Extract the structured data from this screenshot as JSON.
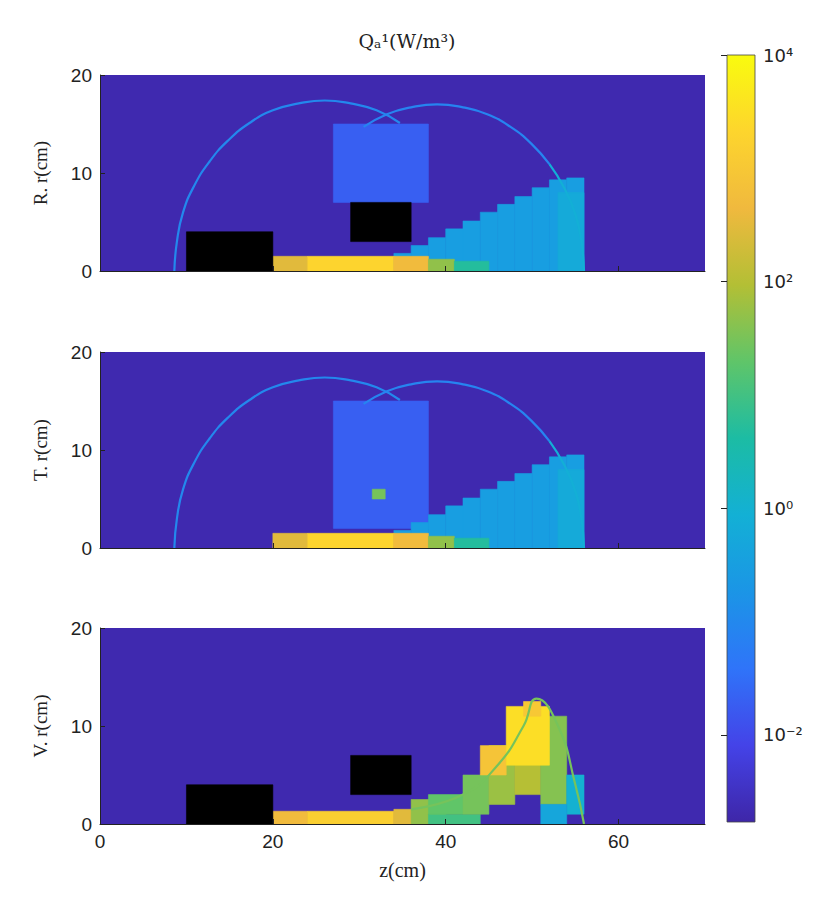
{
  "chart_data": {
    "type": "heatmap",
    "title": "Qₐ¹(W/m³)",
    "color_bar": {
      "log": true,
      "range": [
        0.0017,
        10000
      ],
      "ticks": [
        {
          "value": 0.01,
          "label": "10⁻²"
        },
        {
          "value": 1,
          "label": "10⁰"
        },
        {
          "value": 100,
          "label": "10²"
        },
        {
          "value": 10000,
          "label": "10⁴"
        }
      ]
    },
    "panels": [
      {
        "ylabel": "R. r(cm)",
        "xlim": [
          0,
          70
        ],
        "ylim": [
          0,
          20
        ],
        "xticks": [
          0,
          20,
          40,
          60
        ],
        "yticks": [
          0,
          10,
          20
        ],
        "tick_labels": "y",
        "regions": [
          [
            0,
            70,
            0,
            20,
            0.002
          ],
          [
            27,
            38,
            7,
            15,
            0.02
          ],
          [
            34,
            36,
            0,
            1.8,
            0.3
          ],
          [
            36,
            38,
            0,
            2.6,
            0.3
          ],
          [
            38,
            40,
            0,
            3.4,
            0.3
          ],
          [
            40,
            42,
            0,
            4.3,
            0.3
          ],
          [
            42,
            44,
            0,
            5.1,
            0.3
          ],
          [
            44,
            46,
            0,
            6.0,
            0.3
          ],
          [
            46,
            48,
            0,
            6.8,
            0.3
          ],
          [
            48,
            50,
            0,
            7.6,
            0.3
          ],
          [
            50,
            52,
            0,
            8.5,
            0.3
          ],
          [
            52,
            54,
            0,
            9.3,
            0.3
          ],
          [
            54,
            56,
            0,
            9.5,
            0.3
          ],
          [
            53,
            56,
            0,
            8,
            0.6
          ],
          [
            20,
            24,
            0,
            1.5,
            300
          ],
          [
            24,
            34,
            0,
            1.5,
            2000
          ],
          [
            34,
            38,
            0,
            1.5,
            500
          ],
          [
            38,
            41,
            0,
            1.2,
            50
          ],
          [
            41,
            45,
            0,
            1,
            5
          ]
        ],
        "ridges": [
          {
            "value": 0.1,
            "points": [
              [
                8.6,
                0
              ],
              [
                8.9,
                3.0
              ],
              [
                9.6,
                5.95
              ],
              [
                10.9,
                8.7
              ],
              [
                12.7,
                11.2
              ],
              [
                14.8,
                13.3
              ],
              [
                17.3,
                15.1
              ],
              [
                20.0,
                16.4
              ],
              [
                23.0,
                17.1
              ],
              [
                26,
                17.4
              ],
              [
                29.0,
                17.1
              ],
              [
                32.0,
                16.4
              ],
              [
                34.7,
                15.1
              ]
            ]
          },
          {
            "value": 0.08,
            "points": [
              [
                30.5,
                14.7
              ],
              [
                33.2,
                16.0
              ],
              [
                36.0,
                16.7
              ],
              [
                39,
                17
              ],
              [
                42.0,
                16.7
              ],
              [
                44.8,
                16.0
              ],
              [
                47.5,
                14.7
              ],
              [
                49.9,
                13.0
              ],
              [
                52.0,
                10.9
              ]
            ]
          },
          {
            "value": 0.8,
            "points": [
              [
                52.0,
                10.9
              ],
              [
                53.7,
                8.5
              ],
              [
                55.0,
                5.8
              ],
              [
                55.7,
                3.0
              ],
              [
                56,
                0
              ]
            ]
          }
        ],
        "obstacles": [
          [
            10,
            20,
            0,
            4
          ],
          [
            29,
            36,
            3,
            7
          ]
        ]
      },
      {
        "ylabel": "T. r(cm)",
        "xlim": [
          0,
          70
        ],
        "ylim": [
          0,
          20
        ],
        "xticks": [
          0,
          20,
          40,
          60
        ],
        "yticks": [
          0,
          10,
          20
        ],
        "tick_labels": "y",
        "regions": [
          [
            0,
            70,
            0,
            20,
            0.002
          ],
          [
            27,
            38,
            2,
            15,
            0.02
          ],
          [
            34,
            36,
            0,
            1.8,
            0.3
          ],
          [
            36,
            38,
            0,
            2.6,
            0.3
          ],
          [
            38,
            40,
            0,
            3.4,
            0.3
          ],
          [
            40,
            42,
            0,
            4.3,
            0.3
          ],
          [
            42,
            44,
            0,
            5.1,
            0.3
          ],
          [
            44,
            46,
            0,
            6.0,
            0.3
          ],
          [
            46,
            48,
            0,
            6.8,
            0.3
          ],
          [
            48,
            50,
            0,
            7.6,
            0.3
          ],
          [
            50,
            52,
            0,
            8.5,
            0.3
          ],
          [
            52,
            54,
            0,
            9.3,
            0.3
          ],
          [
            54,
            56,
            0,
            9.5,
            0.3
          ],
          [
            53,
            56,
            0,
            8,
            0.6
          ],
          [
            20,
            24,
            0,
            1.5,
            300
          ],
          [
            24,
            34,
            0,
            1.5,
            2000
          ],
          [
            34,
            38,
            0,
            1.5,
            500
          ],
          [
            38,
            41,
            0,
            1.2,
            50
          ],
          [
            41,
            45,
            0,
            1,
            5
          ],
          [
            31.5,
            33,
            5,
            6,
            30
          ]
        ],
        "ridges": [
          {
            "value": 0.1,
            "points": [
              [
                8.6,
                0
              ],
              [
                8.9,
                3.0
              ],
              [
                9.6,
                5.95
              ],
              [
                10.9,
                8.7
              ],
              [
                12.7,
                11.2
              ],
              [
                14.8,
                13.3
              ],
              [
                17.3,
                15.1
              ],
              [
                20.0,
                16.4
              ],
              [
                23.0,
                17.1
              ],
              [
                26,
                17.4
              ],
              [
                29.0,
                17.1
              ],
              [
                32.0,
                16.4
              ],
              [
                34.7,
                15.1
              ]
            ]
          },
          {
            "value": 0.08,
            "points": [
              [
                30.5,
                14.7
              ],
              [
                33.2,
                16.0
              ],
              [
                36.0,
                16.7
              ],
              [
                39,
                17
              ],
              [
                42.0,
                16.7
              ],
              [
                44.8,
                16.0
              ],
              [
                47.5,
                14.7
              ],
              [
                49.9,
                13.0
              ],
              [
                52.0,
                10.9
              ]
            ]
          },
          {
            "value": 0.8,
            "points": [
              [
                52.0,
                10.9
              ],
              [
                53.7,
                8.5
              ],
              [
                55.0,
                5.8
              ],
              [
                55.7,
                3.0
              ],
              [
                56,
                0
              ]
            ]
          }
        ]
      },
      {
        "ylabel": "V. r(cm)",
        "xlabel": "z(cm)",
        "xlim": [
          0,
          70
        ],
        "ylim": [
          0,
          20
        ],
        "xticks": [
          0,
          20,
          40,
          60
        ],
        "yticks": [
          0,
          10,
          20
        ],
        "regions": [
          [
            0,
            70,
            0,
            20,
            0.002
          ],
          [
            20,
            24,
            0,
            1.3,
            500
          ],
          [
            24,
            34,
            0,
            1.3,
            1500
          ],
          [
            34,
            38,
            0,
            1.5,
            300
          ],
          [
            36,
            40,
            0,
            2.5,
            50
          ],
          [
            38,
            44,
            0,
            1,
            10
          ],
          [
            38,
            42,
            1,
            3,
            20
          ],
          [
            42,
            45,
            1,
            5,
            30
          ],
          [
            45,
            48,
            2,
            8,
            60
          ],
          [
            48,
            51,
            3,
            11,
            100
          ],
          [
            51,
            54,
            2,
            11,
            40
          ],
          [
            54,
            56,
            1,
            5,
            1
          ],
          [
            51,
            54,
            0,
            2,
            0.5
          ],
          [
            44,
            47,
            5,
            8,
            800
          ],
          [
            47,
            52,
            6,
            12,
            3000
          ],
          [
            49,
            51,
            11,
            12.5,
            1000
          ]
        ],
        "ridges": [
          {
            "value": 30,
            "points": [
              [
                36,
                1.5
              ],
              [
                42,
                3
              ],
              [
                46,
                6
              ],
              [
                49,
                10
              ],
              [
                50.5,
                12.8
              ],
              [
                53,
                10
              ],
              [
                55,
                4
              ],
              [
                56,
                0
              ]
            ]
          }
        ],
        "obstacles": [
          [
            10,
            20,
            0,
            4
          ],
          [
            29,
            36,
            3,
            7
          ]
        ]
      }
    ]
  }
}
